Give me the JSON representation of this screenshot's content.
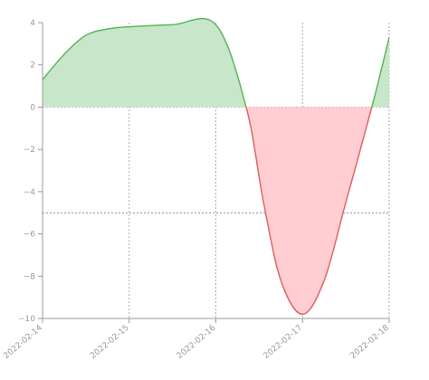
{
  "chart_data": {
    "type": "area",
    "title": "",
    "xlabel": "",
    "ylabel": "",
    "x_ticks": [
      "2022-02-14",
      "2022-02-15",
      "2022-02-16",
      "2022-02-17",
      "2022-02-18"
    ],
    "y_ticks": [
      "4",
      "2",
      "0",
      "−2",
      "−4",
      "−6",
      "−8",
      "−10"
    ],
    "y_tick_values": [
      4,
      2,
      0,
      -2,
      -4,
      -6,
      -8,
      -10
    ],
    "ylim": [
      -10,
      4
    ],
    "xlim": [
      0,
      4
    ],
    "reference_line_y": -5,
    "grid": "dotted",
    "series": [
      {
        "x": [
          0.0,
          0.25,
          0.5,
          0.75,
          1.0,
          1.5,
          2.0,
          2.35,
          2.55,
          2.75,
          3.0,
          3.25,
          3.5,
          3.8,
          4.0
        ],
        "values": [
          1.3,
          2.5,
          3.4,
          3.7,
          3.8,
          3.9,
          3.9,
          0.0,
          -4.5,
          -8.2,
          -9.8,
          -8.2,
          -4.5,
          0.0,
          3.3
        ]
      }
    ],
    "positive_color": "#5cb85c",
    "positive_fill": "#c8e6c9",
    "negative_color": "#e06666",
    "negative_fill": "#ffcdd2"
  }
}
